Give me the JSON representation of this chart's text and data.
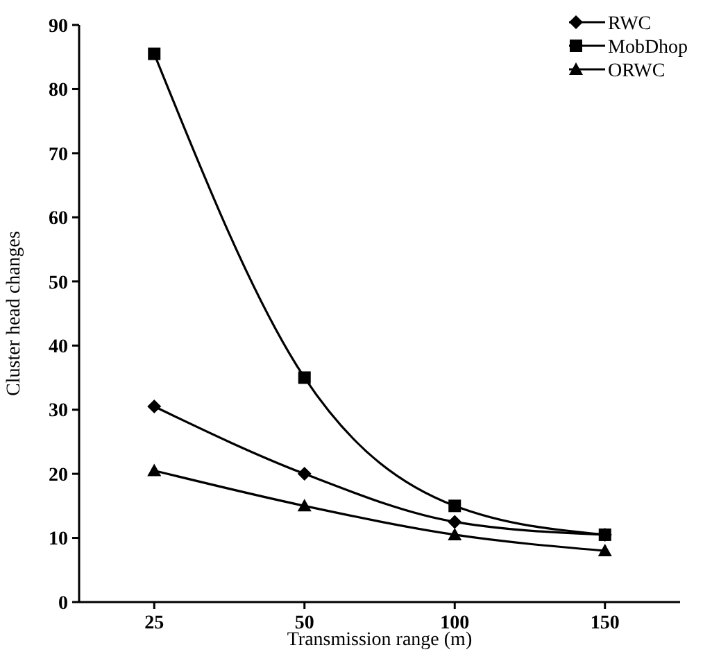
{
  "chart_data": {
    "type": "line",
    "xlabel": "Transmission range (m)",
    "ylabel": "Cluster head changes",
    "categories": [
      "25",
      "50",
      "100",
      "150"
    ],
    "ylim": [
      0,
      90
    ],
    "yticks": [
      0,
      10,
      20,
      30,
      40,
      50,
      60,
      70,
      80,
      90
    ],
    "legend": "top right",
    "grid": false,
    "line_style": "solid",
    "series": [
      {
        "name": "RWC",
        "color": "#000000",
        "marker": "diamond",
        "values": [
          30.5,
          20,
          12.5,
          10.5
        ]
      },
      {
        "name": "MobDhop",
        "color": "#000000",
        "marker": "square",
        "values": [
          85.5,
          35,
          15,
          10.5
        ]
      },
      {
        "name": "ORWC",
        "color": "#000000",
        "marker": "triangle",
        "values": [
          20.5,
          15,
          10.5,
          8
        ]
      }
    ]
  }
}
